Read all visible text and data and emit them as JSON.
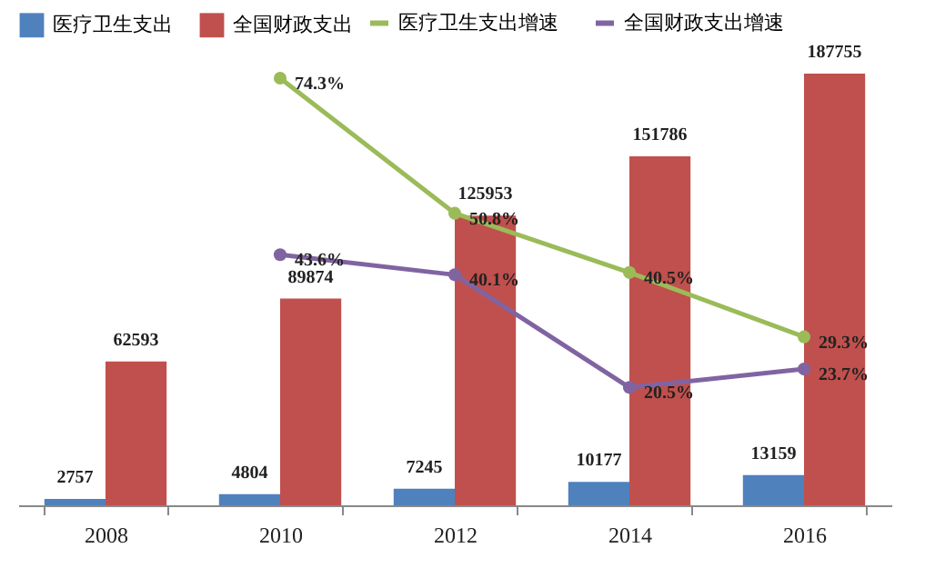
{
  "chart_data": {
    "type": "bar",
    "categories": [
      "2008",
      "2010",
      "2012",
      "2014",
      "2016"
    ],
    "legend": "top",
    "tick_labels": "x",
    "marker": "circle",
    "series": [
      {
        "name": "医疗卫生支出",
        "color": "#4f81bd",
        "values": [
          2757,
          4804,
          7245,
          10177,
          13159
        ],
        "value_labels": [
          "2757",
          "4804",
          "7245",
          "10177",
          "13159"
        ]
      },
      {
        "name": "全国财政支出",
        "color": "#c0504d",
        "values": [
          62593,
          89874,
          125953,
          151786,
          187755
        ],
        "value_labels": [
          "62593",
          "89874",
          "125953",
          "151786",
          "187755"
        ]
      },
      {
        "name": "医疗卫生支出增速",
        "type": "line",
        "axis": "y2",
        "color": "#9bbb59",
        "values": [
          null,
          74.3,
          50.8,
          40.5,
          29.3
        ],
        "value_labels": [
          null,
          "74.3%",
          "50.8%",
          "40.5%",
          "29.3%"
        ]
      },
      {
        "name": "全国财政支出增速",
        "type": "line",
        "axis": "y2",
        "color": "#8064a2",
        "values": [
          null,
          43.6,
          40.1,
          20.5,
          23.7
        ],
        "value_labels": [
          null,
          "43.6%",
          "40.1%",
          "20.5%",
          "23.7%"
        ]
      }
    ]
  }
}
